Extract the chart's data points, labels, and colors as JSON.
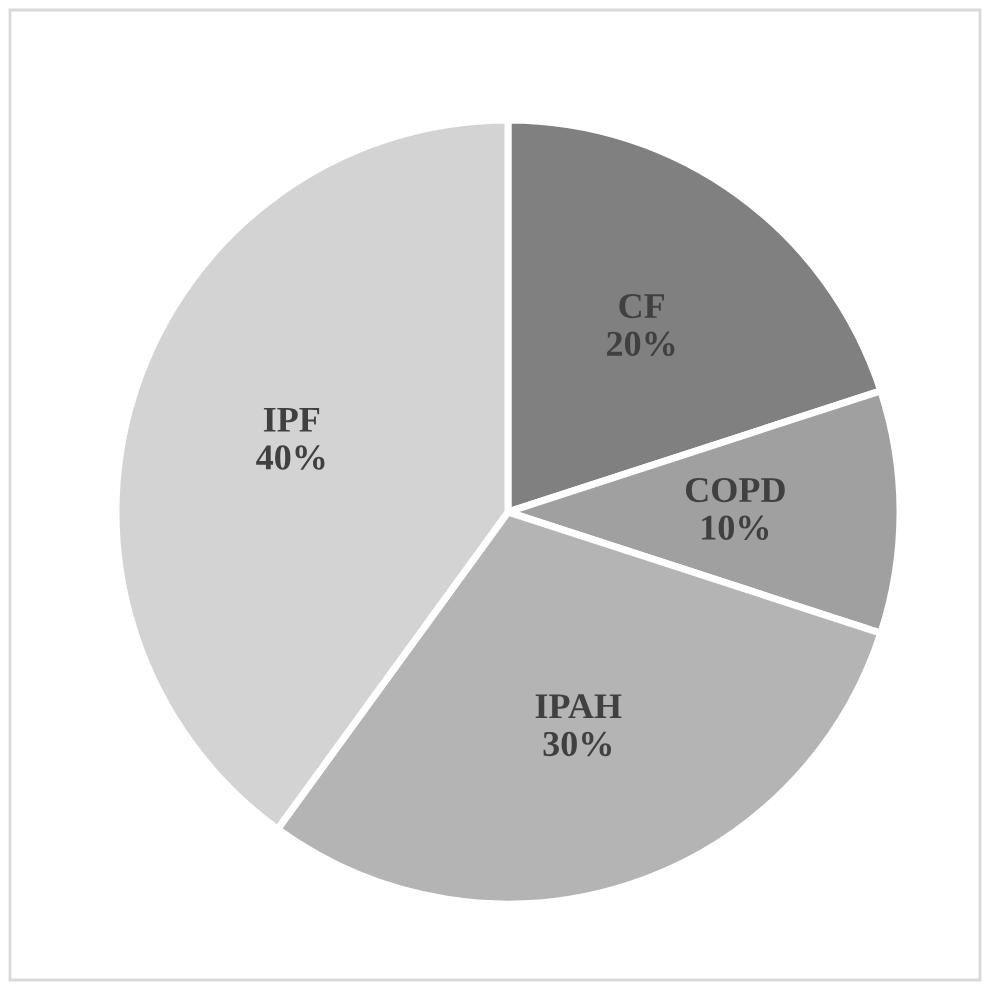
{
  "chart_data": {
    "type": "pie",
    "categories": [
      "CF",
      "COPD",
      "IPAH",
      "IPF"
    ],
    "values": [
      20,
      10,
      30,
      40
    ],
    "value_labels": [
      "20%",
      "10%",
      "30%",
      "40%"
    ],
    "colors": [
      "#808080",
      "#a0a0a0",
      "#b4b4b4",
      "#d3d3d3"
    ],
    "legend": false
  }
}
